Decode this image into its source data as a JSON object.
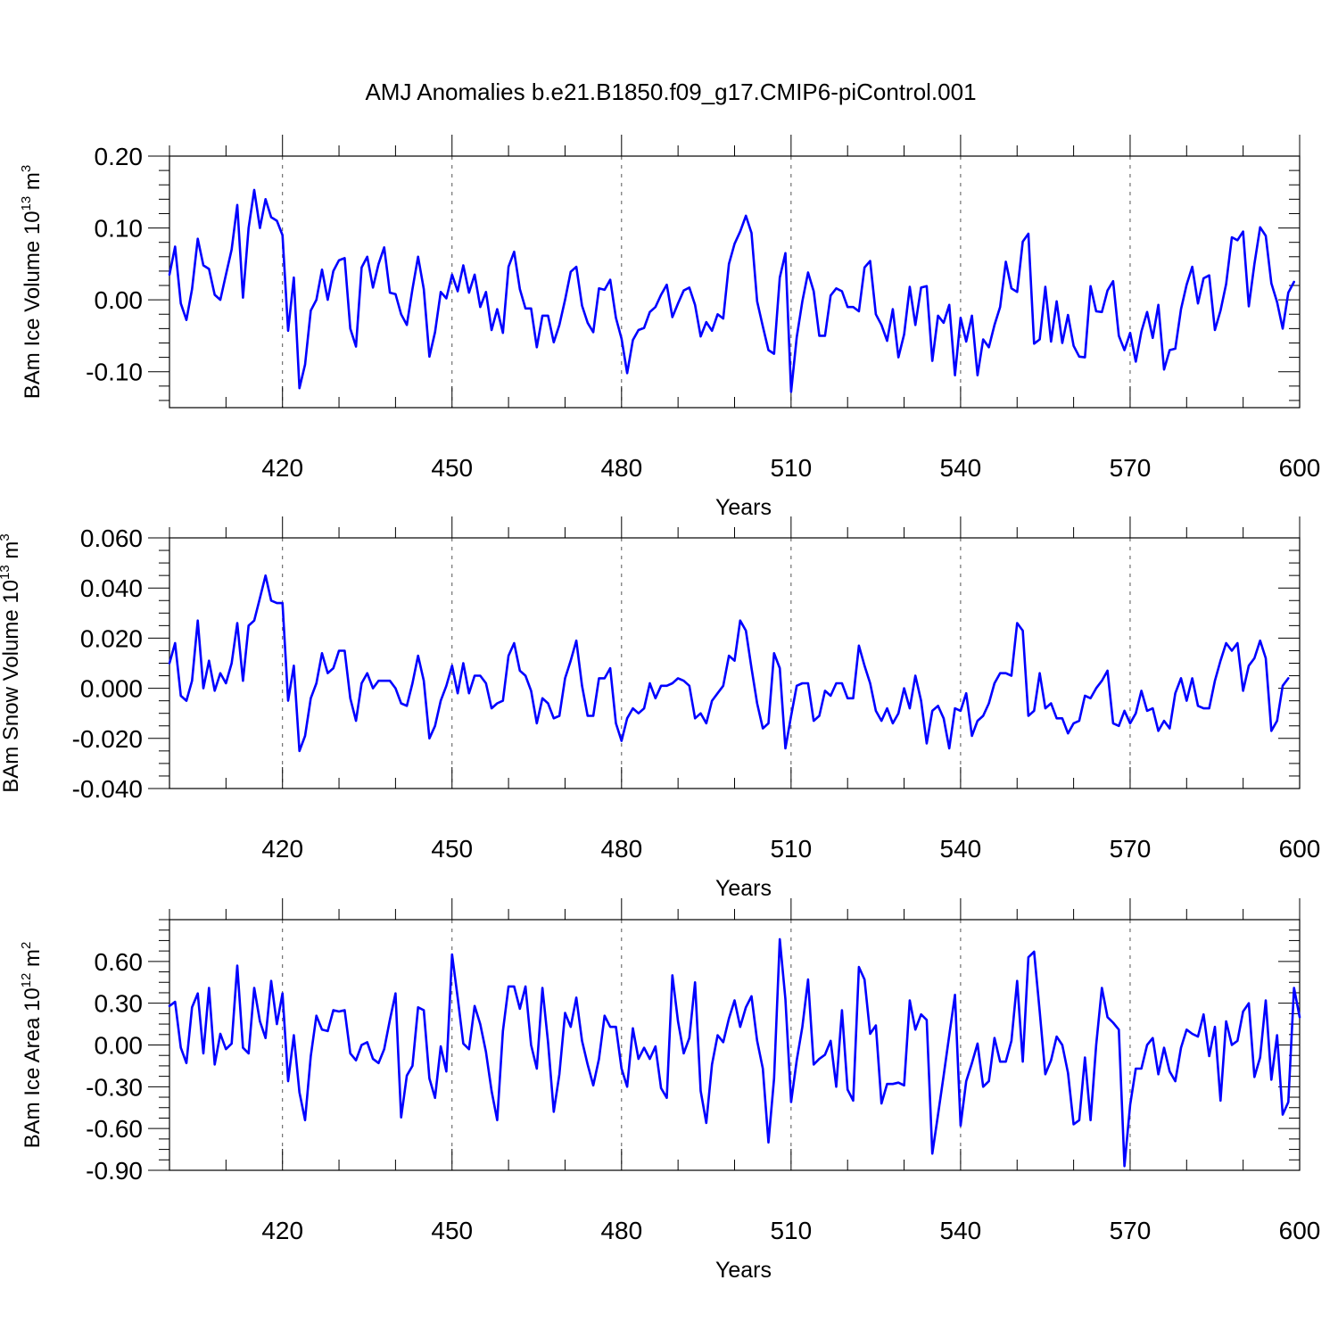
{
  "figure": {
    "title": "AMJ Anomalies b.e21.B1850.f09_g17.CMIP6-piControl.001"
  },
  "chart_data": [
    {
      "type": "line",
      "ylabel": {
        "text": "BAm Ice Volume 10",
        "sup": "13",
        "unit": " m",
        "unit_sup": "3"
      },
      "xlabel": "Years",
      "xlim": [
        400,
        600
      ],
      "ylim": [
        -0.15,
        0.2
      ],
      "yticks": [
        -0.1,
        0.0,
        0.1,
        0.2
      ],
      "ytick_labels": [
        "-0.10",
        "0.00",
        "0.10",
        "0.20"
      ],
      "yminor_step": 0.02,
      "xticks": [
        420,
        450,
        480,
        510,
        540,
        570,
        600
      ],
      "xtick_labels": [
        "420",
        "450",
        "480",
        "510",
        "540",
        "570",
        "600"
      ],
      "xminor_step": 10,
      "grid_x_dashed": [
        420,
        450,
        480,
        510,
        540,
        570
      ],
      "color": "#0000ff",
      "x_start": 400,
      "values": [
        0.035,
        0.074,
        -0.005,
        -0.028,
        0.015,
        0.085,
        0.048,
        0.043,
        0.007,
        0.0,
        0.035,
        0.07,
        0.132,
        0.003,
        0.1,
        0.153,
        0.1,
        0.14,
        0.115,
        0.11,
        0.09,
        -0.043,
        0.031,
        -0.123,
        -0.09,
        -0.015,
        0.0,
        0.042,
        0.0,
        0.04,
        0.055,
        0.058,
        -0.04,
        -0.065,
        0.045,
        0.06,
        0.017,
        0.05,
        0.073,
        0.01,
        0.008,
        -0.02,
        -0.035,
        0.015,
        0.06,
        0.015,
        -0.079,
        -0.045,
        0.011,
        0.002,
        0.035,
        0.012,
        0.048,
        0.01,
        0.035,
        -0.01,
        0.011,
        -0.042,
        -0.013,
        -0.046,
        0.046,
        0.067,
        0.015,
        -0.012,
        -0.012,
        -0.066,
        -0.022,
        -0.022,
        -0.059,
        -0.035,
        0.0,
        0.039,
        0.046,
        -0.008,
        -0.032,
        -0.045,
        0.016,
        0.014,
        0.028,
        -0.025,
        -0.054,
        -0.102,
        -0.056,
        -0.042,
        -0.039,
        -0.017,
        -0.01,
        0.007,
        0.021,
        -0.024,
        -0.005,
        0.013,
        0.017,
        -0.007,
        -0.051,
        -0.031,
        -0.043,
        -0.02,
        -0.026,
        0.05,
        0.078,
        0.095,
        0.117,
        0.093,
        -0.002,
        -0.037,
        -0.07,
        -0.075,
        0.031,
        0.065,
        -0.128,
        -0.052,
        -0.002,
        0.038,
        0.012,
        -0.05,
        -0.05,
        0.006,
        0.016,
        0.012,
        -0.01,
        -0.01,
        -0.016,
        0.045,
        0.054,
        -0.02,
        -0.035,
        -0.057,
        -0.013,
        -0.08,
        -0.048,
        0.018,
        -0.035,
        0.017,
        0.019,
        -0.085,
        -0.022,
        -0.032,
        -0.007,
        -0.105,
        -0.025,
        -0.058,
        -0.022,
        -0.105,
        -0.055,
        -0.066,
        -0.035,
        -0.01,
        0.053,
        0.016,
        0.011,
        0.081,
        0.092,
        -0.061,
        -0.055,
        0.018,
        -0.058,
        -0.002,
        -0.06,
        -0.021,
        -0.064,
        -0.079,
        -0.08,
        0.019,
        -0.016,
        -0.017,
        0.013,
        0.026,
        -0.05,
        -0.07,
        -0.046,
        -0.086,
        -0.044,
        -0.017,
        -0.053,
        -0.007,
        -0.097,
        -0.07,
        -0.068,
        -0.013,
        0.021,
        0.046,
        -0.005,
        0.03,
        0.034,
        -0.042,
        -0.015,
        0.022,
        0.087,
        0.083,
        0.095,
        -0.009,
        0.05,
        0.101,
        0.089,
        0.023,
        -0.003,
        -0.04,
        0.01,
        0.025
      ]
    },
    {
      "type": "line",
      "ylabel": {
        "text": "BAm Snow Volume 10",
        "sup": "13",
        "unit": " m",
        "unit_sup": "3"
      },
      "xlabel": "Years",
      "xlim": [
        400,
        600
      ],
      "ylim": [
        -0.04,
        0.06
      ],
      "yticks": [
        -0.04,
        -0.02,
        0.0,
        0.02,
        0.04,
        0.06
      ],
      "ytick_labels": [
        "-0.040",
        "-0.020",
        "0.000",
        "0.020",
        "0.040",
        "0.060"
      ],
      "yminor_step": 0.005,
      "xticks": [
        420,
        450,
        480,
        510,
        540,
        570,
        600
      ],
      "xtick_labels": [
        "420",
        "450",
        "480",
        "510",
        "540",
        "570",
        "600"
      ],
      "xminor_step": 10,
      "grid_x_dashed": [
        420,
        450,
        480,
        510,
        540,
        570
      ],
      "color": "#0000ff",
      "x_start": 400,
      "values": [
        0.01,
        0.018,
        -0.003,
        -0.005,
        0.003,
        0.027,
        0.0,
        0.011,
        -0.001,
        0.006,
        0.002,
        0.01,
        0.026,
        0.003,
        0.025,
        0.027,
        0.036,
        0.045,
        0.035,
        0.034,
        0.034,
        -0.005,
        0.009,
        -0.025,
        -0.019,
        -0.004,
        0.002,
        0.014,
        0.006,
        0.008,
        0.015,
        0.015,
        -0.004,
        -0.013,
        0.002,
        0.006,
        0.0,
        0.003,
        0.003,
        0.003,
        0.0,
        -0.006,
        -0.007,
        0.002,
        0.013,
        0.003,
        -0.02,
        -0.015,
        -0.005,
        0.001,
        0.009,
        -0.002,
        0.01,
        -0.002,
        0.005,
        0.005,
        0.002,
        -0.008,
        -0.006,
        -0.005,
        0.013,
        0.018,
        0.007,
        0.005,
        -0.001,
        -0.014,
        -0.004,
        -0.006,
        -0.012,
        -0.011,
        0.004,
        0.011,
        0.019,
        0.001,
        -0.011,
        -0.011,
        0.004,
        0.004,
        0.008,
        -0.014,
        -0.021,
        -0.012,
        -0.008,
        -0.01,
        -0.008,
        0.002,
        -0.004,
        0.001,
        0.001,
        0.002,
        0.004,
        0.003,
        0.001,
        -0.012,
        -0.01,
        -0.014,
        -0.005,
        -0.002,
        0.001,
        0.013,
        0.011,
        0.027,
        0.023,
        0.008,
        -0.006,
        -0.016,
        -0.014,
        0.014,
        0.008,
        -0.024,
        -0.011,
        0.001,
        0.002,
        0.002,
        -0.013,
        -0.011,
        -0.001,
        -0.003,
        0.002,
        0.002,
        -0.004,
        -0.004,
        0.017,
        0.009,
        0.002,
        -0.009,
        -0.013,
        -0.008,
        -0.014,
        -0.01,
        0.0,
        -0.008,
        0.005,
        -0.005,
        -0.022,
        -0.009,
        -0.007,
        -0.012,
        -0.024,
        -0.008,
        -0.009,
        -0.002,
        -0.019,
        -0.013,
        -0.011,
        -0.006,
        0.002,
        0.006,
        0.006,
        0.005,
        0.026,
        0.023,
        -0.011,
        -0.009,
        0.006,
        -0.008,
        -0.006,
        -0.012,
        -0.012,
        -0.018,
        -0.014,
        -0.013,
        -0.003,
        -0.004,
        0.0,
        0.003,
        0.007,
        -0.014,
        -0.015,
        -0.009,
        -0.014,
        -0.01,
        -0.001,
        -0.009,
        -0.008,
        -0.017,
        -0.013,
        -0.016,
        -0.002,
        0.004,
        -0.005,
        0.004,
        -0.007,
        -0.008,
        -0.008,
        0.003,
        0.011,
        0.018,
        0.015,
        0.018,
        -0.001,
        0.009,
        0.012,
        0.019,
        0.012,
        -0.017,
        -0.013,
        0.001,
        0.004
      ]
    },
    {
      "type": "line",
      "ylabel": {
        "text": "BAm Ice Area 10",
        "sup": "12",
        "unit": " m",
        "unit_sup": "2"
      },
      "xlabel": "Years",
      "xlim": [
        400,
        600
      ],
      "ylim": [
        -0.9,
        0.9
      ],
      "yticks": [
        -0.9,
        -0.6,
        -0.3,
        0.0,
        0.3,
        0.6
      ],
      "ytick_labels": [
        "-0.90",
        "-0.60",
        "-0.30",
        "0.00",
        "0.30",
        "0.60"
      ],
      "yminor_step": 0.075,
      "xticks": [
        420,
        450,
        480,
        510,
        540,
        570,
        600
      ],
      "xtick_labels": [
        "420",
        "450",
        "480",
        "510",
        "540",
        "570",
        "600"
      ],
      "xminor_step": 10,
      "grid_x_dashed": [
        420,
        450,
        480,
        510,
        540,
        570
      ],
      "color": "#0000ff",
      "x_start": 400,
      "values": [
        0.28,
        0.31,
        -0.02,
        -0.13,
        0.27,
        0.37,
        -0.06,
        0.41,
        -0.14,
        0.08,
        -0.03,
        0.01,
        0.57,
        -0.02,
        -0.06,
        0.41,
        0.17,
        0.05,
        0.46,
        0.15,
        0.37,
        -0.26,
        0.07,
        -0.34,
        -0.54,
        -0.08,
        0.21,
        0.11,
        0.1,
        0.25,
        0.24,
        0.25,
        -0.06,
        -0.11,
        0.0,
        0.02,
        -0.1,
        -0.13,
        -0.03,
        0.18,
        0.37,
        -0.52,
        -0.22,
        -0.15,
        0.27,
        0.25,
        -0.24,
        -0.38,
        -0.01,
        -0.19,
        0.65,
        0.34,
        0.01,
        -0.03,
        0.28,
        0.15,
        -0.05,
        -0.33,
        -0.54,
        0.1,
        0.42,
        0.42,
        0.26,
        0.42,
        0.0,
        -0.17,
        0.41,
        0.02,
        -0.48,
        -0.21,
        0.23,
        0.13,
        0.34,
        0.03,
        -0.14,
        -0.29,
        -0.1,
        0.21,
        0.13,
        0.13,
        -0.17,
        -0.3,
        0.12,
        -0.1,
        -0.02,
        -0.1,
        -0.01,
        -0.31,
        -0.38,
        0.5,
        0.17,
        -0.06,
        0.05,
        0.45,
        -0.33,
        -0.56,
        -0.14,
        0.07,
        0.02,
        0.19,
        0.32,
        0.13,
        0.27,
        0.35,
        0.03,
        -0.17,
        -0.7,
        -0.24,
        0.76,
        0.33,
        -0.41,
        -0.11,
        0.13,
        0.47,
        -0.14,
        -0.1,
        -0.07,
        0.03,
        -0.3,
        0.25,
        -0.32,
        -0.4,
        0.56,
        0.47,
        0.08,
        0.14,
        -0.42,
        -0.28,
        -0.28,
        -0.27,
        -0.29,
        0.32,
        0.11,
        0.22,
        0.18,
        -0.78,
        -0.5,
        -0.22,
        0.07,
        0.36,
        -0.58,
        -0.26,
        -0.13,
        0.01,
        -0.3,
        -0.26,
        0.05,
        -0.12,
        -0.12,
        0.03,
        0.46,
        -0.12,
        0.63,
        0.67,
        0.24,
        -0.21,
        -0.11,
        0.06,
        0.0,
        -0.2,
        -0.57,
        -0.54,
        -0.09,
        -0.54,
        0.0,
        0.41,
        0.2,
        0.16,
        0.11,
        -0.87,
        -0.43,
        -0.17,
        -0.17,
        0.0,
        0.05,
        -0.21,
        -0.02,
        -0.19,
        -0.26,
        -0.02,
        0.11,
        0.08,
        0.06,
        0.22,
        -0.08,
        0.13,
        -0.4,
        0.17,
        0.0,
        0.03,
        0.24,
        0.3,
        -0.23,
        -0.09,
        0.32,
        -0.25,
        0.07,
        -0.5,
        -0.41,
        0.41,
        0.2
      ]
    }
  ]
}
